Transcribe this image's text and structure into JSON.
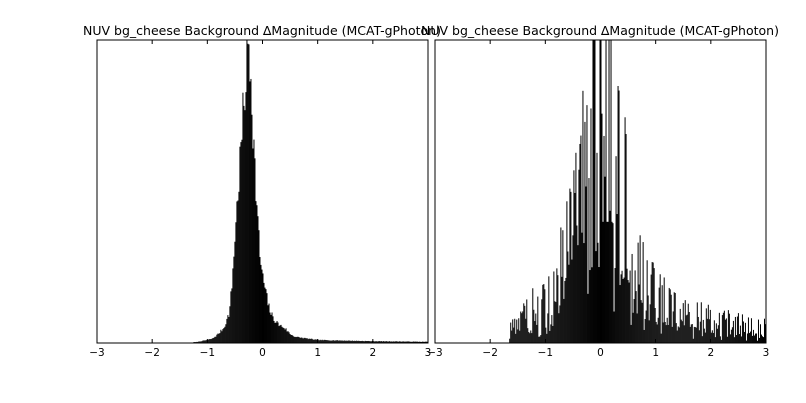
{
  "chart_data": [
    {
      "type": "bar",
      "title": "NUV bg_cheese Background ∆Magnitude (MCAT-gPhoton)",
      "xlim": [
        -3,
        3
      ],
      "ylim": [
        0,
        1
      ],
      "xticks": [
        "−3",
        "−2",
        "−1",
        "0",
        "1",
        "2",
        "3"
      ],
      "yticks_shown": false,
      "grid": false,
      "bar_color": "#000000",
      "peak_x": -0.25,
      "description_values": {
        "x": [
          -1.2,
          -1.0,
          -0.9,
          -0.8,
          -0.7,
          -0.6,
          -0.55,
          -0.5,
          -0.45,
          -0.4,
          -0.35,
          -0.3,
          -0.25,
          -0.2,
          -0.15,
          -0.1,
          -0.05,
          0.0,
          0.05,
          0.1,
          0.15,
          0.2,
          0.3,
          0.4,
          0.5,
          0.6,
          0.8,
          1.0,
          1.5,
          2.0,
          2.5,
          2.9
        ],
        "y": [
          0.003,
          0.01,
          0.015,
          0.03,
          0.05,
          0.1,
          0.2,
          0.35,
          0.48,
          0.62,
          0.75,
          0.88,
          1.0,
          0.86,
          0.62,
          0.45,
          0.3,
          0.22,
          0.18,
          0.13,
          0.1,
          0.08,
          0.06,
          0.05,
          0.03,
          0.02,
          0.015,
          0.01,
          0.008,
          0.006,
          0.005,
          0.004
        ]
      }
    },
    {
      "type": "bar",
      "title": "NUV bg_cheese Background ∆Magnitude (MCAT-gPhoton)",
      "xlim": [
        -3,
        3
      ],
      "ylim": [
        0,
        1
      ],
      "xticks": [
        "−3",
        "−2",
        "−1",
        "0",
        "1",
        "2",
        "3"
      ],
      "yticks_shown": false,
      "grid": false,
      "bar_color": "#000000",
      "peak_x": 0.05,
      "description_values": {
        "x": [
          -1.6,
          -1.3,
          -1.0,
          -0.8,
          -0.6,
          -0.4,
          -0.3,
          -0.2,
          -0.1,
          0.0,
          0.05,
          0.1,
          0.2,
          0.3,
          0.4,
          0.5,
          0.6,
          0.8,
          1.0,
          1.3,
          1.6,
          2.0,
          2.5,
          2.9
        ],
        "y": [
          0.05,
          0.1,
          0.15,
          0.2,
          0.3,
          0.45,
          0.55,
          0.65,
          0.8,
          0.9,
          1.0,
          0.85,
          0.75,
          0.6,
          0.5,
          0.4,
          0.3,
          0.2,
          0.15,
          0.12,
          0.1,
          0.08,
          0.06,
          0.05
        ]
      }
    }
  ]
}
